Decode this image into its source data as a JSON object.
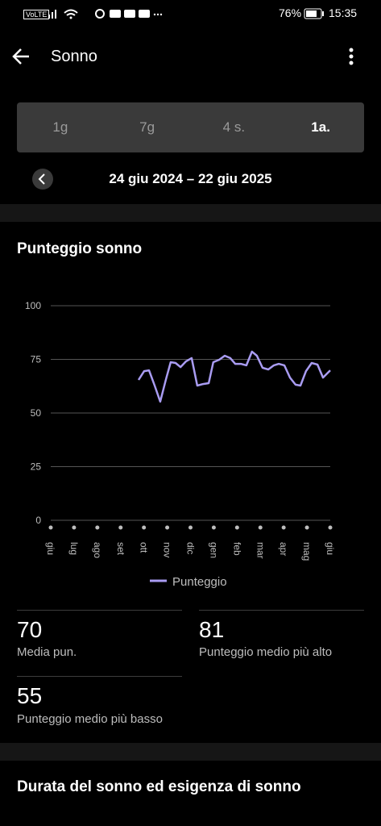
{
  "status_bar": {
    "network": "VoLTE",
    "battery": "76%",
    "time": "15:35"
  },
  "header": {
    "title": "Sonno"
  },
  "tabs": {
    "items": [
      "1g",
      "7g",
      "4 s.",
      "1a."
    ],
    "selected": 3
  },
  "date_range": "24 giu 2024 – 22 giu 2025",
  "chart_data": {
    "type": "line",
    "title": "Punteggio sonno",
    "x": [
      3.77,
      4.01,
      4.22,
      4.46,
      4.7,
      4.95,
      5.15,
      5.36,
      5.57,
      5.81,
      6.05,
      6.29,
      6.54,
      6.78,
      6.98,
      7.23,
      7.47,
      7.71,
      7.92,
      8.16,
      8.4,
      8.64,
      8.85,
      9.09,
      9.34,
      9.58,
      9.79,
      10.03,
      10.27,
      10.51,
      10.72,
      10.96,
      11.2,
      11.45,
      11.69,
      12.0
    ],
    "series": [
      {
        "name": "Punteggio",
        "color": "#a99cf2",
        "values": [
          65.4,
          69.5,
          69.9,
          62.8,
          55.3,
          65.8,
          73.7,
          73.3,
          71.4,
          74.1,
          75.6,
          62.8,
          63.5,
          63.9,
          73.7,
          74.8,
          76.7,
          75.6,
          72.9,
          72.9,
          72.2,
          78.6,
          76.7,
          71.1,
          70.3,
          72.2,
          72.9,
          72.2,
          66.5,
          63.2,
          62.8,
          69.5,
          73.3,
          72.6,
          66.5,
          69.9
        ]
      }
    ],
    "xlim": [
      0,
      12
    ],
    "xticks": [
      {
        "value": 0,
        "label": "giu"
      },
      {
        "value": 1,
        "label": "lug"
      },
      {
        "value": 2,
        "label": "ago"
      },
      {
        "value": 3,
        "label": "set"
      },
      {
        "value": 4,
        "label": "ott"
      },
      {
        "value": 5,
        "label": "nov"
      },
      {
        "value": 6,
        "label": "dic"
      },
      {
        "value": 7,
        "label": "gen"
      },
      {
        "value": 8,
        "label": "feb"
      },
      {
        "value": 9,
        "label": "mar"
      },
      {
        "value": 10,
        "label": "apr"
      },
      {
        "value": 11,
        "label": "mag"
      },
      {
        "value": 12,
        "label": "giu"
      }
    ],
    "ylim": [
      0,
      100
    ],
    "yticks": [
      0,
      25,
      50,
      75,
      100
    ],
    "grid": true
  },
  "stats": [
    {
      "value": 70,
      "label": "Media pun."
    },
    {
      "value": 81,
      "label": "Punteggio medio più alto"
    },
    {
      "value": 55,
      "label": "Punteggio medio più basso"
    }
  ],
  "next_section": {
    "title": "Durata del sonno ed esigenza di sonno"
  }
}
